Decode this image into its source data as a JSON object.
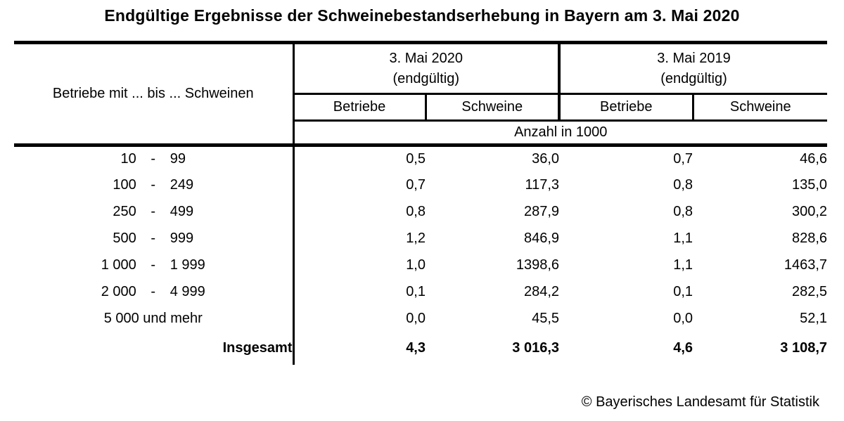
{
  "title": "Endgültige Ergebnisse der Schweinebestandserhebung in Bayern am 3. Mai 2020",
  "table": {
    "stub_header": "Betriebe mit ... bis ... Schweinen",
    "col_groups": [
      {
        "line1": "3. Mai 2020",
        "line2": "(endgültig)"
      },
      {
        "line1": "3. Mai 2019",
        "line2": "(endgültig)"
      }
    ],
    "sub_headers": [
      "Betriebe",
      "Schweine",
      "Betriebe",
      "Schweine"
    ],
    "unit_row": "Anzahl in 1000",
    "rows": [
      {
        "label": {
          "from": "10",
          "dash": "-",
          "to": "99"
        },
        "values": [
          "0,5",
          "36,0",
          "0,7",
          "46,6"
        ]
      },
      {
        "label": {
          "from": "100",
          "dash": "-",
          "to": "249"
        },
        "values": [
          "0,7",
          "117,3",
          "0,8",
          "135,0"
        ]
      },
      {
        "label": {
          "from": "250",
          "dash": "-",
          "to": "499"
        },
        "values": [
          "0,8",
          "287,9",
          "0,8",
          "300,2"
        ]
      },
      {
        "label": {
          "from": "500",
          "dash": "-",
          "to": "999"
        },
        "values": [
          "1,2",
          "846,9",
          "1,1",
          "828,6"
        ]
      },
      {
        "label": {
          "from": "1 000",
          "dash": "-",
          "to": "1 999"
        },
        "values": [
          "1,0",
          "1398,6",
          "1,1",
          "1463,7"
        ]
      },
      {
        "label": {
          "from": "2 000",
          "dash": "-",
          "to": "4 999"
        },
        "values": [
          "0,1",
          "284,2",
          "0,1",
          "282,5"
        ]
      },
      {
        "label_text": "5 000 und mehr",
        "values": [
          "0,0",
          "45,5",
          "0,0",
          "52,1"
        ]
      },
      {
        "label_text": "Insgesamt",
        "values": [
          "4,3",
          "3 016,3",
          "4,6",
          "3 108,7"
        ]
      }
    ]
  },
  "footer": {
    "copyright": "© Bayerisches Landesamt für Statistik"
  }
}
